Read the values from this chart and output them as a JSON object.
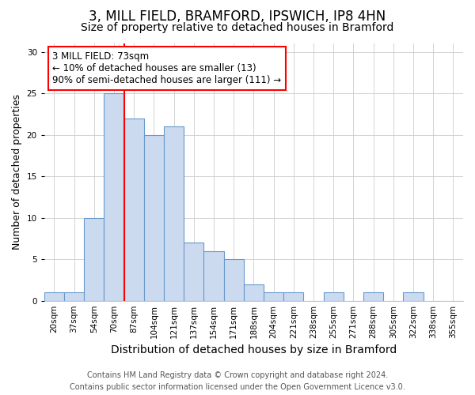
{
  "title1": "3, MILL FIELD, BRAMFORD, IPSWICH, IP8 4HN",
  "title2": "Size of property relative to detached houses in Bramford",
  "xlabel": "Distribution of detached houses by size in Bramford",
  "ylabel": "Number of detached properties",
  "categories": [
    "20sqm",
    "37sqm",
    "54sqm",
    "70sqm",
    "87sqm",
    "104sqm",
    "121sqm",
    "137sqm",
    "154sqm",
    "171sqm",
    "188sqm",
    "204sqm",
    "221sqm",
    "238sqm",
    "255sqm",
    "271sqm",
    "288sqm",
    "305sqm",
    "322sqm",
    "338sqm",
    "355sqm"
  ],
  "values": [
    1,
    1,
    10,
    25,
    22,
    20,
    21,
    7,
    6,
    5,
    2,
    1,
    1,
    0,
    1,
    0,
    1,
    0,
    1,
    0,
    0
  ],
  "bar_color": "#ccdaf0",
  "bar_edge_color": "#6699cc",
  "red_line_x": 3.5,
  "annotation_line1": "3 MILL FIELD: 73sqm",
  "annotation_line2": "← 10% of detached houses are smaller (13)",
  "annotation_line3": "90% of semi-detached houses are larger (111) →",
  "ylim": [
    0,
    31
  ],
  "yticks": [
    0,
    5,
    10,
    15,
    20,
    25,
    30
  ],
  "footer1": "Contains HM Land Registry data © Crown copyright and database right 2024.",
  "footer2": "Contains public sector information licensed under the Open Government Licence v3.0.",
  "title1_fontsize": 12,
  "title2_fontsize": 10,
  "xlabel_fontsize": 10,
  "ylabel_fontsize": 9,
  "tick_fontsize": 7.5,
  "footer_fontsize": 7,
  "annotation_fontsize": 8.5
}
